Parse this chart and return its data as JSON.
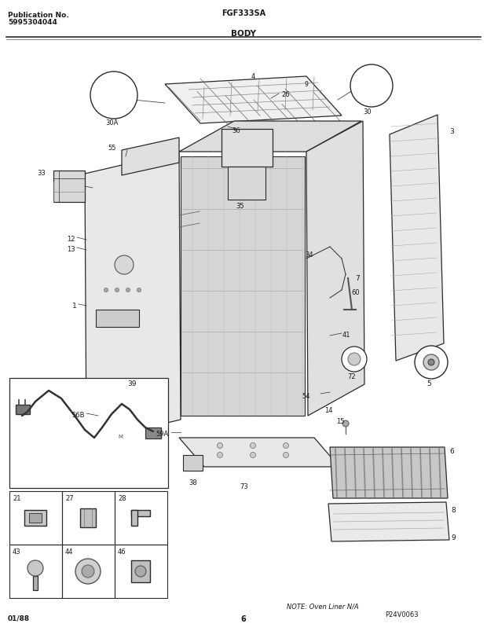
{
  "title_left_line1": "Publication No.",
  "title_left_line2": "5995304044",
  "title_center_top": "FGF333SA",
  "title_center_bottom": "BODY",
  "bottom_left": "01/88",
  "bottom_center": "6",
  "bottom_right_note": "NOTE: Oven Liner N/A",
  "bottom_right_code": "P24V0063",
  "bg_color": "#ffffff",
  "lc": "#2a2a2a",
  "tc": "#1a1a1a",
  "fig_width": 6.2,
  "fig_height": 8.04,
  "dpi": 100
}
